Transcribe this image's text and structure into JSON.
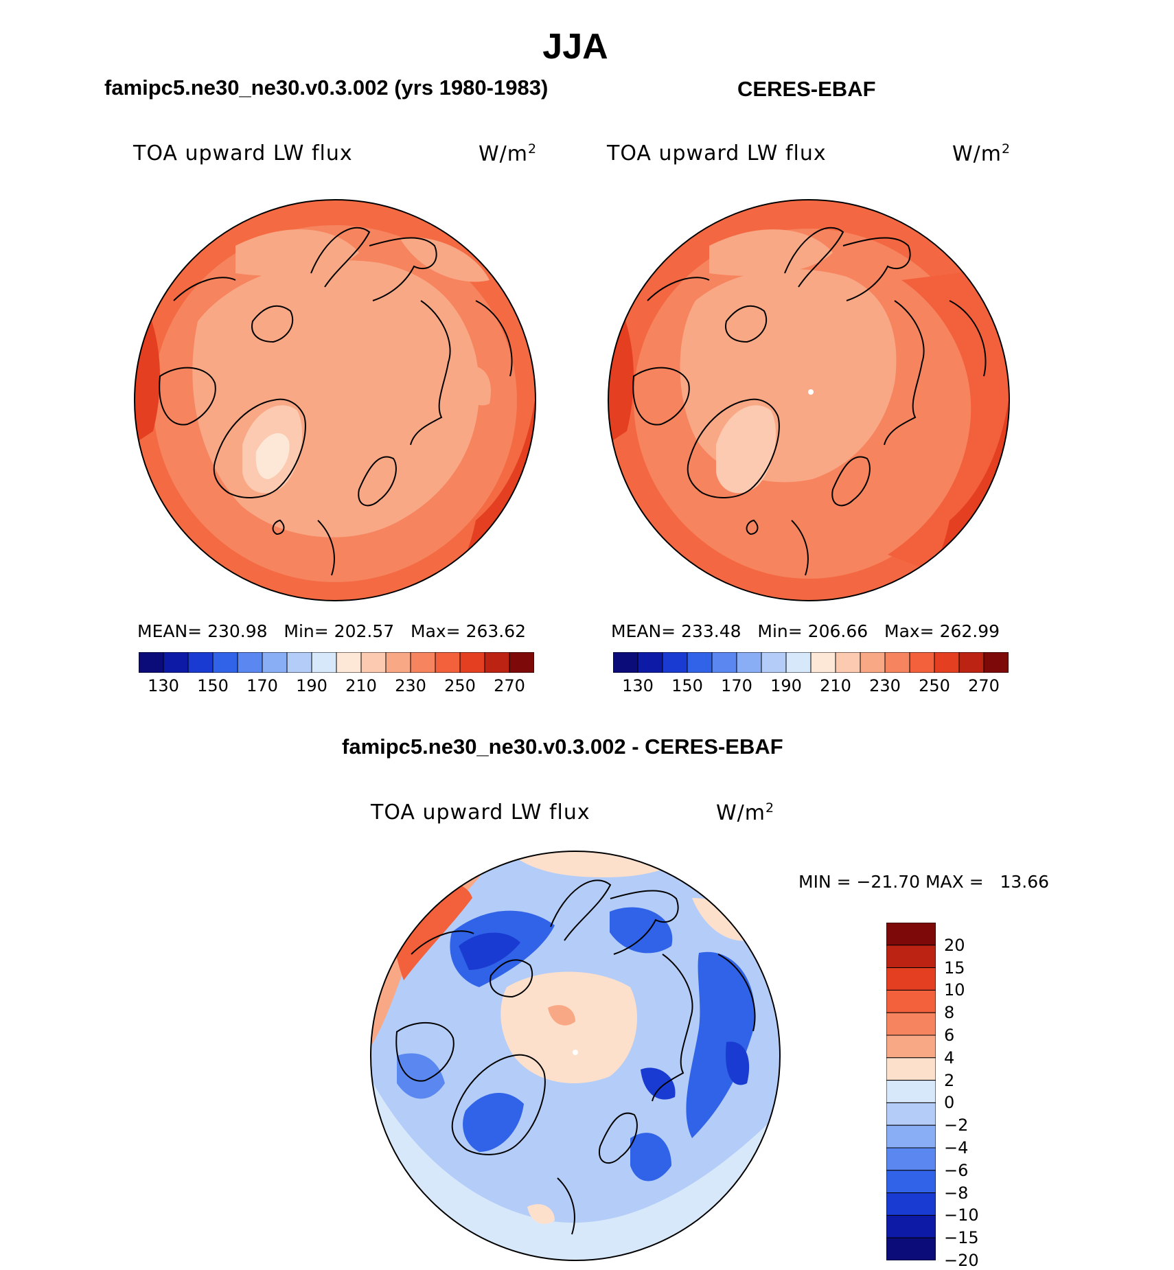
{
  "figure": {
    "title": "JJA"
  },
  "panels": [
    {
      "title": "famipc5.ne30_ne30.v0.3.002 (yrs 1980-1983)",
      "variable_label": "TOA upward LW flux",
      "units_label": "W/m",
      "units_exponent": "2",
      "mean_label": "MEAN=",
      "mean_value": "230.98",
      "min_label": "Min=",
      "min_value": "202.57",
      "max_label": "Max=",
      "max_value": "263.62"
    },
    {
      "title": "CERES-EBAF",
      "variable_label": "TOA upward LW flux",
      "units_label": "W/m",
      "units_exponent": "2",
      "mean_label": "MEAN=",
      "mean_value": "233.48",
      "min_label": "Min=",
      "min_value": "206.66",
      "max_label": "Max=",
      "max_value": "262.99"
    },
    {
      "title": "famipc5.ne30_ne30.v0.3.002 - CERES-EBAF",
      "variable_label": "TOA upward LW flux",
      "units_label": "W/m",
      "units_exponent": "2",
      "range_text": "MIN = −21.70 MAX =   13.66"
    }
  ],
  "colorbar_main": {
    "tick_labels": [
      "130",
      "150",
      "170",
      "190",
      "210",
      "230",
      "250",
      "270"
    ],
    "colors": [
      "#0b0c7a",
      "#0d1aa6",
      "#1a3bd2",
      "#3063e8",
      "#5a88f0",
      "#8aaef5",
      "#b3cdf8",
      "#d8e8fb",
      "#fde8d8",
      "#fccab0",
      "#f9a886",
      "#f6845e",
      "#f2613b",
      "#e43f21",
      "#bd2312",
      "#7d0a08"
    ]
  },
  "colorbar_diff": {
    "tick_labels": [
      "20",
      "15",
      "10",
      "8",
      "6",
      "4",
      "2",
      "0",
      "−2",
      "−4",
      "−6",
      "−8",
      "−10",
      "−15",
      "−20"
    ],
    "colors": [
      "#7d0a08",
      "#bd2312",
      "#e43f21",
      "#f2613b",
      "#f6845e",
      "#f9a886",
      "#fde0cc",
      "#d8e8fb",
      "#b3cdf8",
      "#8aaef5",
      "#5a88f0",
      "#3063e8",
      "#1a3bd2",
      "#0d1aa6",
      "#0b0c7a"
    ]
  }
}
